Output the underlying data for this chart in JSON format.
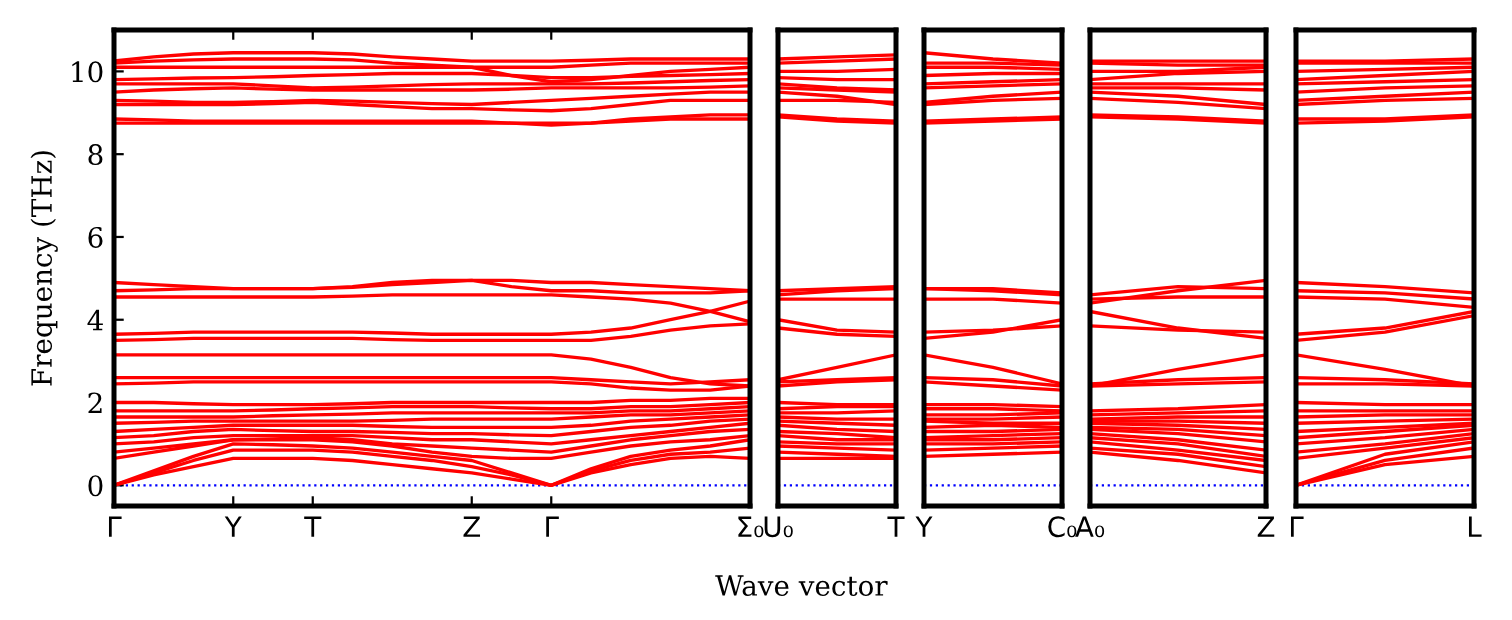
{
  "chart_data": [
    {
      "type": "line",
      "color": "#ff0000",
      "ylabel": "Frequency (THz)",
      "xlabel": "Wave vector",
      "categories": [
        "Γ",
        null,
        null,
        "Y",
        null,
        "T",
        null,
        null,
        null,
        "Z",
        null,
        "Γ",
        null,
        null,
        null,
        null,
        "Σ₀"
      ],
      "ylim": [
        -0.5,
        11
      ],
      "yticks": [
        0,
        2,
        4,
        6,
        8,
        10
      ],
      "grid": false,
      "legend": false,
      "ref_lines": [
        {
          "axis": "y",
          "value": 0,
          "color": "#0000ff",
          "line_style": "dotted"
        }
      ],
      "series": [
        {
          "values": [
            0,
            0.25,
            0.45,
            0.65,
            0.65,
            0.65,
            0.6,
            0.5,
            0.4,
            0.3,
            0.15,
            0,
            0.3,
            0.5,
            0.65,
            0.7,
            0.65
          ]
        },
        {
          "values": [
            0,
            0.3,
            0.6,
            0.85,
            0.85,
            0.85,
            0.8,
            0.7,
            0.6,
            0.45,
            0.25,
            0,
            0.35,
            0.6,
            0.75,
            0.8,
            0.9
          ]
        },
        {
          "values": [
            0,
            0.35,
            0.7,
            1.0,
            0.98,
            0.95,
            0.9,
            0.8,
            0.7,
            0.6,
            0.3,
            0,
            0.4,
            0.7,
            0.85,
            0.95,
            1.1
          ]
        },
        {
          "values": [
            0.65,
            0.8,
            0.95,
            1.1,
            1.1,
            1.1,
            1.05,
            0.95,
            0.8,
            0.7,
            0.65,
            0.65,
            0.8,
            0.95,
            1.05,
            1.1,
            1.2
          ]
        },
        {
          "values": [
            0.8,
            0.9,
            1.0,
            1.1,
            1.12,
            1.15,
            1.1,
            1.0,
            0.95,
            0.9,
            0.85,
            0.8,
            0.95,
            1.1,
            1.2,
            1.3,
            1.35
          ]
        },
        {
          "values": [
            1.0,
            1.05,
            1.15,
            1.2,
            1.2,
            1.2,
            1.2,
            1.15,
            1.1,
            1.1,
            1.05,
            1.0,
            1.1,
            1.2,
            1.3,
            1.4,
            1.5
          ]
        },
        {
          "values": [
            1.15,
            1.2,
            1.3,
            1.35,
            1.32,
            1.3,
            1.3,
            1.28,
            1.25,
            1.25,
            1.22,
            1.2,
            1.3,
            1.4,
            1.45,
            1.55,
            1.6
          ]
        },
        {
          "values": [
            1.3,
            1.35,
            1.4,
            1.45,
            1.45,
            1.45,
            1.45,
            1.42,
            1.4,
            1.4,
            1.4,
            1.4,
            1.45,
            1.55,
            1.6,
            1.65,
            1.7
          ]
        },
        {
          "values": [
            1.5,
            1.52,
            1.55,
            1.55,
            1.55,
            1.55,
            1.55,
            1.57,
            1.6,
            1.6,
            1.6,
            1.6,
            1.65,
            1.7,
            1.7,
            1.75,
            1.8
          ]
        },
        {
          "values": [
            1.65,
            1.65,
            1.65,
            1.65,
            1.68,
            1.7,
            1.72,
            1.75,
            1.75,
            1.75,
            1.75,
            1.75,
            1.75,
            1.8,
            1.8,
            1.85,
            1.9
          ]
        },
        {
          "values": [
            1.8,
            1.8,
            1.8,
            1.8,
            1.82,
            1.85,
            1.87,
            1.9,
            1.9,
            1.9,
            1.87,
            1.85,
            1.85,
            1.9,
            1.9,
            1.95,
            2.0
          ]
        },
        {
          "values": [
            2.0,
            2.0,
            1.97,
            1.95,
            1.95,
            1.95,
            1.97,
            2.0,
            2.0,
            2.0,
            2.0,
            2.0,
            2.0,
            2.05,
            2.05,
            2.1,
            2.1
          ]
        },
        {
          "values": [
            2.45,
            2.47,
            2.5,
            2.5,
            2.5,
            2.5,
            2.5,
            2.5,
            2.5,
            2.5,
            2.5,
            2.5,
            2.45,
            2.35,
            2.3,
            2.3,
            2.4
          ]
        },
        {
          "values": [
            2.6,
            2.6,
            2.6,
            2.6,
            2.6,
            2.6,
            2.6,
            2.6,
            2.6,
            2.6,
            2.6,
            2.6,
            2.55,
            2.5,
            2.45,
            2.5,
            2.55
          ]
        },
        {
          "values": [
            3.15,
            3.15,
            3.15,
            3.15,
            3.15,
            3.15,
            3.15,
            3.15,
            3.15,
            3.15,
            3.15,
            3.15,
            3.05,
            2.85,
            2.6,
            2.45,
            2.4
          ]
        },
        {
          "values": [
            3.5,
            3.52,
            3.55,
            3.55,
            3.55,
            3.55,
            3.55,
            3.52,
            3.5,
            3.5,
            3.5,
            3.5,
            3.5,
            3.6,
            3.75,
            3.85,
            3.9
          ]
        },
        {
          "values": [
            3.65,
            3.67,
            3.7,
            3.7,
            3.7,
            3.7,
            3.7,
            3.68,
            3.65,
            3.65,
            3.65,
            3.65,
            3.7,
            3.8,
            4.0,
            4.2,
            4.45
          ]
        },
        {
          "values": [
            4.55,
            4.55,
            4.55,
            4.55,
            4.55,
            4.55,
            4.57,
            4.6,
            4.6,
            4.6,
            4.6,
            4.6,
            4.55,
            4.5,
            4.4,
            4.2,
            3.95
          ]
        },
        {
          "values": [
            4.7,
            4.72,
            4.75,
            4.75,
            4.75,
            4.75,
            4.78,
            4.85,
            4.9,
            4.95,
            4.8,
            4.7,
            4.7,
            4.65,
            4.65,
            4.65,
            4.7
          ]
        },
        {
          "values": [
            4.9,
            4.85,
            4.8,
            4.75,
            4.75,
            4.75,
            4.8,
            4.9,
            4.95,
            4.95,
            4.95,
            4.9,
            4.9,
            4.85,
            4.8,
            4.75,
            4.7
          ]
        },
        {
          "values": [
            8.75,
            8.75,
            8.75,
            8.75,
            8.75,
            8.75,
            8.75,
            8.75,
            8.75,
            8.75,
            8.75,
            8.75,
            8.75,
            8.8,
            8.85,
            8.85,
            8.85
          ]
        },
        {
          "values": [
            8.85,
            8.83,
            8.8,
            8.8,
            8.8,
            8.8,
            8.8,
            8.8,
            8.8,
            8.8,
            8.75,
            8.7,
            8.75,
            8.85,
            8.9,
            8.95,
            8.95
          ]
        },
        {
          "values": [
            9.2,
            9.2,
            9.2,
            9.2,
            9.22,
            9.25,
            9.2,
            9.15,
            9.1,
            9.1,
            9.07,
            9.05,
            9.1,
            9.2,
            9.3,
            9.3,
            9.3
          ]
        },
        {
          "values": [
            9.3,
            9.28,
            9.25,
            9.25,
            9.27,
            9.3,
            9.28,
            9.25,
            9.22,
            9.2,
            9.25,
            9.3,
            9.35,
            9.4,
            9.45,
            9.5,
            9.5
          ]
        },
        {
          "values": [
            9.5,
            9.55,
            9.58,
            9.6,
            9.57,
            9.55,
            9.55,
            9.55,
            9.55,
            9.55,
            9.57,
            9.6,
            9.6,
            9.6,
            9.6,
            9.62,
            9.65
          ]
        },
        {
          "values": [
            9.7,
            9.7,
            9.7,
            9.7,
            9.65,
            9.6,
            9.62,
            9.65,
            9.68,
            9.7,
            9.7,
            9.7,
            9.7,
            9.72,
            9.75,
            9.78,
            9.8
          ]
        },
        {
          "values": [
            9.8,
            9.82,
            9.84,
            9.85,
            9.87,
            9.9,
            9.92,
            9.95,
            9.95,
            9.95,
            9.9,
            9.85,
            9.85,
            9.88,
            9.9,
            9.92,
            9.95
          ]
        },
        {
          "values": [
            10.1,
            10.1,
            10.1,
            10.1,
            10.1,
            10.1,
            10.1,
            10.1,
            10.1,
            10.1,
            9.9,
            9.75,
            9.8,
            9.9,
            10.0,
            10.05,
            10.1
          ]
        },
        {
          "values": [
            10.2,
            10.25,
            10.28,
            10.3,
            10.3,
            10.3,
            10.28,
            10.2,
            10.15,
            10.1,
            10.1,
            10.1,
            10.15,
            10.2,
            10.2,
            10.2,
            10.2
          ]
        },
        {
          "values": [
            10.25,
            10.35,
            10.42,
            10.45,
            10.45,
            10.45,
            10.42,
            10.35,
            10.3,
            10.25,
            10.25,
            10.25,
            10.27,
            10.3,
            10.3,
            10.3,
            10.3
          ]
        }
      ]
    },
    {
      "type": "line",
      "color": "#ff0000",
      "categories": [
        "U₀",
        null,
        "T"
      ],
      "ylim": [
        -0.5,
        11
      ],
      "tick_labels": "x",
      "grid": false,
      "legend": false,
      "ref_lines": [
        {
          "axis": "y",
          "value": 0,
          "color": "#0000ff",
          "line_style": "dotted"
        }
      ],
      "series": [
        {
          "values": [
            0.65,
            0.65,
            0.65
          ]
        },
        {
          "values": [
            0.8,
            0.75,
            0.7
          ]
        },
        {
          "values": [
            0.95,
            0.9,
            0.85
          ]
        },
        {
          "values": [
            1.05,
            1.0,
            1.0
          ]
        },
        {
          "values": [
            1.2,
            1.1,
            1.1
          ]
        },
        {
          "values": [
            1.3,
            1.25,
            1.15
          ]
        },
        {
          "values": [
            1.45,
            1.35,
            1.3
          ]
        },
        {
          "values": [
            1.55,
            1.5,
            1.45
          ]
        },
        {
          "values": [
            1.65,
            1.6,
            1.6
          ]
        },
        {
          "values": [
            1.75,
            1.75,
            1.8
          ]
        },
        {
          "values": [
            1.85,
            1.9,
            1.9
          ]
        },
        {
          "values": [
            2.0,
            1.95,
            1.95
          ]
        },
        {
          "values": [
            2.4,
            2.5,
            2.55
          ]
        },
        {
          "values": [
            2.5,
            2.55,
            2.6
          ]
        },
        {
          "values": [
            2.55,
            2.85,
            3.15
          ]
        },
        {
          "values": [
            3.8,
            3.65,
            3.6
          ]
        },
        {
          "values": [
            4.0,
            3.75,
            3.7
          ]
        },
        {
          "values": [
            4.5,
            4.5,
            4.5
          ]
        },
        {
          "values": [
            4.6,
            4.7,
            4.75
          ]
        },
        {
          "values": [
            4.7,
            4.75,
            4.8
          ]
        },
        {
          "values": [
            8.9,
            8.8,
            8.75
          ]
        },
        {
          "values": [
            8.95,
            8.85,
            8.8
          ]
        },
        {
          "values": [
            9.3,
            9.3,
            9.25
          ]
        },
        {
          "values": [
            9.5,
            9.4,
            9.2
          ]
        },
        {
          "values": [
            9.6,
            9.55,
            9.5
          ]
        },
        {
          "values": [
            9.7,
            9.6,
            9.55
          ]
        },
        {
          "values": [
            9.85,
            9.8,
            9.8
          ]
        },
        {
          "values": [
            10.0,
            10.0,
            10.05
          ]
        },
        {
          "values": [
            10.2,
            10.25,
            10.3
          ]
        },
        {
          "values": [
            10.3,
            10.35,
            10.4
          ]
        }
      ]
    },
    {
      "type": "line",
      "color": "#ff0000",
      "categories": [
        "Y",
        null,
        "C₀"
      ],
      "ylim": [
        -0.5,
        11
      ],
      "tick_labels": "x",
      "grid": false,
      "legend": false,
      "ref_lines": [
        {
          "axis": "y",
          "value": 0,
          "color": "#0000ff",
          "line_style": "dotted"
        }
      ],
      "series": [
        {
          "values": [
            0.7,
            0.75,
            0.8
          ]
        },
        {
          "values": [
            0.85,
            0.9,
            0.95
          ]
        },
        {
          "values": [
            1.0,
            1.0,
            1.05
          ]
        },
        {
          "values": [
            1.1,
            1.1,
            1.15
          ]
        },
        {
          "values": [
            1.15,
            1.2,
            1.25
          ]
        },
        {
          "values": [
            1.3,
            1.3,
            1.35
          ]
        },
        {
          "values": [
            1.4,
            1.45,
            1.4
          ]
        },
        {
          "values": [
            1.55,
            1.5,
            1.5
          ]
        },
        {
          "values": [
            1.6,
            1.6,
            1.65
          ]
        },
        {
          "values": [
            1.7,
            1.7,
            1.75
          ]
        },
        {
          "values": [
            1.85,
            1.85,
            1.8
          ]
        },
        {
          "values": [
            1.95,
            1.95,
            1.9
          ]
        },
        {
          "values": [
            2.5,
            2.4,
            2.3
          ]
        },
        {
          "values": [
            2.6,
            2.55,
            2.4
          ]
        },
        {
          "values": [
            3.15,
            2.85,
            2.45
          ]
        },
        {
          "values": [
            3.55,
            3.7,
            4.0
          ]
        },
        {
          "values": [
            3.7,
            3.75,
            3.85
          ]
        },
        {
          "values": [
            4.5,
            4.5,
            4.4
          ]
        },
        {
          "values": [
            4.75,
            4.7,
            4.6
          ]
        },
        {
          "values": [
            4.75,
            4.75,
            4.65
          ]
        },
        {
          "values": [
            8.75,
            8.8,
            8.85
          ]
        },
        {
          "values": [
            8.8,
            8.85,
            8.9
          ]
        },
        {
          "values": [
            9.2,
            9.3,
            9.35
          ]
        },
        {
          "values": [
            9.25,
            9.4,
            9.5
          ]
        },
        {
          "values": [
            9.6,
            9.65,
            9.7
          ]
        },
        {
          "values": [
            9.7,
            9.75,
            9.8
          ]
        },
        {
          "values": [
            9.9,
            9.95,
            9.95
          ]
        },
        {
          "values": [
            10.1,
            10.1,
            10.05
          ]
        },
        {
          "values": [
            10.2,
            10.2,
            10.15
          ]
        },
        {
          "values": [
            10.45,
            10.3,
            10.2
          ]
        }
      ]
    },
    {
      "type": "line",
      "color": "#ff0000",
      "categories": [
        "A₀",
        null,
        "Z"
      ],
      "ylim": [
        -0.5,
        11
      ],
      "tick_labels": "x",
      "grid": false,
      "legend": false,
      "ref_lines": [
        {
          "axis": "y",
          "value": 0,
          "color": "#0000ff",
          "line_style": "dotted"
        }
      ],
      "series": [
        {
          "values": [
            0.8,
            0.6,
            0.3
          ]
        },
        {
          "values": [
            0.9,
            0.75,
            0.45
          ]
        },
        {
          "values": [
            1.05,
            0.85,
            0.6
          ]
        },
        {
          "values": [
            1.15,
            1.0,
            0.7
          ]
        },
        {
          "values": [
            1.25,
            1.1,
            0.85
          ]
        },
        {
          "values": [
            1.35,
            1.25,
            1.05
          ]
        },
        {
          "values": [
            1.4,
            1.35,
            1.2
          ]
        },
        {
          "values": [
            1.5,
            1.45,
            1.35
          ]
        },
        {
          "values": [
            1.55,
            1.55,
            1.5
          ]
        },
        {
          "values": [
            1.6,
            1.65,
            1.65
          ]
        },
        {
          "values": [
            1.7,
            1.75,
            1.8
          ]
        },
        {
          "values": [
            1.8,
            1.85,
            1.95
          ]
        },
        {
          "values": [
            2.4,
            2.45,
            2.5
          ]
        },
        {
          "values": [
            2.45,
            2.55,
            2.6
          ]
        },
        {
          "values": [
            2.4,
            2.8,
            3.15
          ]
        },
        {
          "values": [
            4.2,
            3.8,
            3.55
          ]
        },
        {
          "values": [
            3.85,
            3.75,
            3.7
          ]
        },
        {
          "values": [
            4.5,
            4.55,
            4.55
          ]
        },
        {
          "values": [
            4.6,
            4.8,
            4.75
          ]
        },
        {
          "values": [
            4.4,
            4.7,
            4.95
          ]
        },
        {
          "values": [
            8.9,
            8.85,
            8.75
          ]
        },
        {
          "values": [
            8.95,
            8.9,
            8.8
          ]
        },
        {
          "values": [
            9.35,
            9.25,
            9.1
          ]
        },
        {
          "values": [
            9.5,
            9.4,
            9.2
          ]
        },
        {
          "values": [
            9.6,
            9.6,
            9.55
          ]
        },
        {
          "values": [
            9.7,
            9.7,
            9.7
          ]
        },
        {
          "values": [
            9.8,
            9.95,
            10.0
          ]
        },
        {
          "values": [
            10.0,
            10.0,
            10.1
          ]
        },
        {
          "values": [
            10.2,
            10.15,
            10.15
          ]
        },
        {
          "values": [
            10.25,
            10.25,
            10.25
          ]
        }
      ]
    },
    {
      "type": "line",
      "color": "#ff0000",
      "categories": [
        "Γ",
        null,
        "L"
      ],
      "ylim": [
        -0.5,
        11
      ],
      "tick_labels": "x",
      "grid": false,
      "legend": false,
      "ref_lines": [
        {
          "axis": "y",
          "value": 0,
          "color": "#0000ff",
          "line_style": "dotted"
        }
      ],
      "series": [
        {
          "values": [
            0,
            0.5,
            0.7
          ]
        },
        {
          "values": [
            0,
            0.6,
            0.9
          ]
        },
        {
          "values": [
            0,
            0.75,
            1.05
          ]
        },
        {
          "values": [
            0.65,
            0.9,
            1.15
          ]
        },
        {
          "values": [
            0.8,
            1.0,
            1.25
          ]
        },
        {
          "values": [
            1.0,
            1.15,
            1.35
          ]
        },
        {
          "values": [
            1.15,
            1.3,
            1.45
          ]
        },
        {
          "values": [
            1.3,
            1.4,
            1.5
          ]
        },
        {
          "values": [
            1.5,
            1.55,
            1.6
          ]
        },
        {
          "values": [
            1.65,
            1.7,
            1.7
          ]
        },
        {
          "values": [
            1.8,
            1.8,
            1.8
          ]
        },
        {
          "values": [
            2.0,
            1.95,
            1.95
          ]
        },
        {
          "values": [
            2.45,
            2.45,
            2.4
          ]
        },
        {
          "values": [
            2.6,
            2.55,
            2.45
          ]
        },
        {
          "values": [
            3.15,
            2.8,
            2.4
          ]
        },
        {
          "values": [
            3.5,
            3.7,
            4.1
          ]
        },
        {
          "values": [
            3.65,
            3.8,
            4.2
          ]
        },
        {
          "values": [
            4.55,
            4.5,
            4.3
          ]
        },
        {
          "values": [
            4.7,
            4.65,
            4.5
          ]
        },
        {
          "values": [
            4.9,
            4.8,
            4.65
          ]
        },
        {
          "values": [
            8.75,
            8.8,
            8.9
          ]
        },
        {
          "values": [
            8.85,
            8.85,
            8.95
          ]
        },
        {
          "values": [
            9.2,
            9.3,
            9.35
          ]
        },
        {
          "values": [
            9.3,
            9.4,
            9.5
          ]
        },
        {
          "values": [
            9.5,
            9.6,
            9.65
          ]
        },
        {
          "values": [
            9.7,
            9.75,
            9.8
          ]
        },
        {
          "values": [
            9.8,
            9.9,
            10.0
          ]
        },
        {
          "values": [
            10.0,
            10.05,
            10.1
          ]
        },
        {
          "values": [
            10.2,
            10.2,
            10.2
          ]
        },
        {
          "values": [
            10.25,
            10.25,
            10.3
          ]
        }
      ]
    }
  ]
}
